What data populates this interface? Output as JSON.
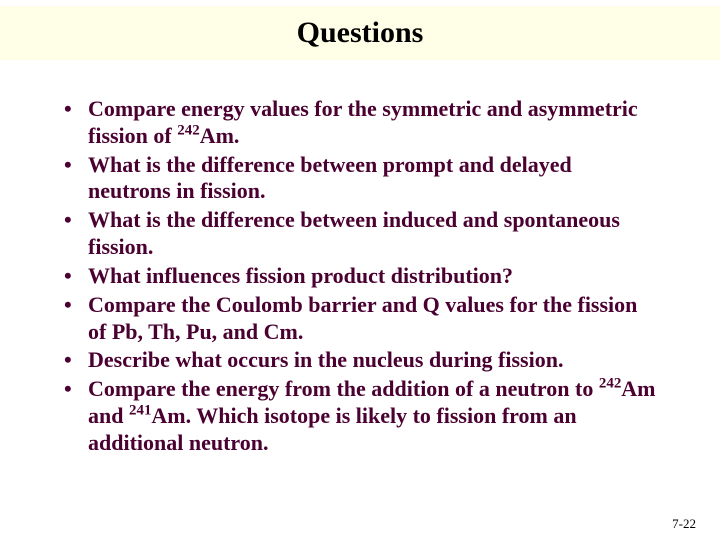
{
  "title": "Questions",
  "title_band_color": "#ffffe8",
  "background_color": "#ffffff",
  "bullet_text_color": "#4a0030",
  "title_fontsize": 30,
  "body_fontsize": 22,
  "font_family": "Times New Roman",
  "bullets": [
    {
      "html": "Compare energy values for the symmetric and asymmetric fission of <sup>242</sup>Am."
    },
    {
      "html": "What is the difference between prompt and delayed neutrons in fission."
    },
    {
      "html": "What is the difference between induced and spontaneous fission."
    },
    {
      "html": "What influences fission product distribution?"
    },
    {
      "html": "Compare the Coulomb barrier and Q values for the fission of Pb, Th, Pu, and Cm."
    },
    {
      "html": "Describe what occurs in the nucleus during fission."
    },
    {
      "html": "Compare the energy from the addition of a neutron to <sup>242</sup>Am and <sup>241</sup>Am.  Which isotope is likely to fission from an additional neutron."
    }
  ],
  "page_number": "7-22"
}
